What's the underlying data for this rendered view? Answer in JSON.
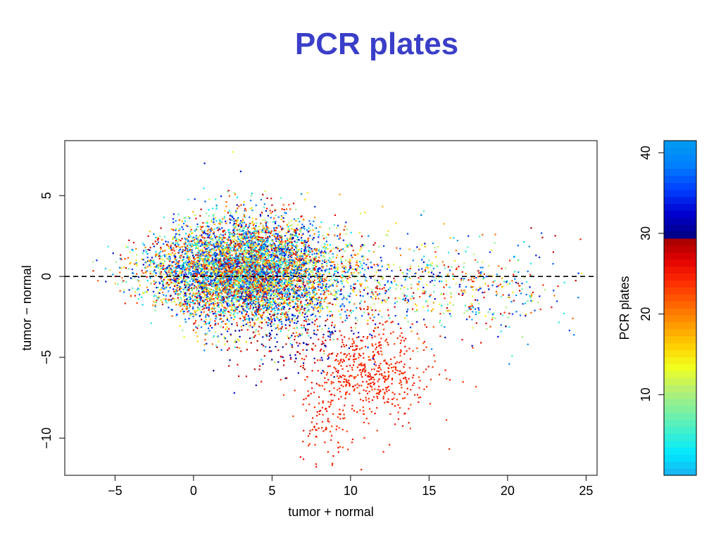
{
  "title": "PCR plates",
  "chart_data": {
    "type": "scatter",
    "title": "PCR plates",
    "xlabel": "tumor + normal",
    "ylabel": "tumor − normal",
    "xlim": [
      -8.2,
      25.7
    ],
    "ylim": [
      -12.3,
      8.4
    ],
    "xticks": [
      -5,
      0,
      5,
      10,
      15,
      20,
      25
    ],
    "xtick_labels": [
      "−5",
      "0",
      "5",
      "10",
      "15",
      "20",
      "25"
    ],
    "yticks": [
      -10,
      -5,
      0,
      5
    ],
    "ytick_labels": [
      "−10",
      "−5",
      "0",
      "5"
    ],
    "reference_line": {
      "y": 0,
      "style": "dashed"
    },
    "grid": false,
    "color_variable": "PCR plates",
    "colorbar": {
      "label": "PCR plates",
      "range": [
        0,
        41.5
      ],
      "ticks": [
        10,
        20,
        30,
        40
      ],
      "tick_labels": [
        "10",
        "20",
        "30",
        "40"
      ],
      "bands": [
        {
          "from": 0,
          "to": 29.5,
          "palette": [
            "#1ab0f0",
            "#00e8ff",
            "#3ef0d0",
            "#7ef0a0",
            "#b8f070",
            "#f0ff20",
            "#ffd000",
            "#ff9800",
            "#ff6000",
            "#ff2a00",
            "#e00000",
            "#a00000"
          ]
        },
        {
          "from": 29.5,
          "to": 41.5,
          "palette": [
            "#000080",
            "#0000d0",
            "#0040ff",
            "#0080ff",
            "#009cf0"
          ]
        }
      ]
    },
    "clusters": [
      {
        "name": "",
        "n": 6500,
        "cx": 3.2,
        "cy": 0.3,
        "sx": 2.9,
        "sy": 1.6,
        "plates": [
          1,
          29
        ],
        "mix": "all"
      },
      {
        "name": "",
        "n": 450,
        "cx": 11.8,
        "cy": -0.5,
        "sx": 3.6,
        "sy": 1.6,
        "plates": [
          1,
          41
        ],
        "mix": "all"
      },
      {
        "name": "",
        "n": 260,
        "cx": 18.5,
        "cy": -1.0,
        "sx": 2.6,
        "sy": 1.4,
        "plates": [
          1,
          41
        ],
        "mix": "all"
      },
      {
        "name": "",
        "n": 520,
        "cx": 11.3,
        "cy": -5.9,
        "sx": 2.0,
        "sy": 1.5,
        "plates": [
          23,
          26
        ],
        "mix": "orange"
      },
      {
        "name": "",
        "n": 90,
        "cx": 8.5,
        "cy": -8.8,
        "sx": 1.1,
        "sy": 1.4,
        "plates": [
          23,
          26
        ],
        "mix": "orange"
      },
      {
        "name": "",
        "n": 220,
        "cx": 6.0,
        "cy": -3.8,
        "sx": 2.6,
        "sy": 1.3,
        "plates": [
          26,
          33
        ],
        "mix": "dark"
      }
    ],
    "notable_points": [
      {
        "x": 2.5,
        "y": 7.7,
        "plate": 14
      },
      {
        "x": 0.7,
        "y": 7.0,
        "plate": 33
      },
      {
        "x": 3.0,
        "y": 6.5,
        "plate": 33
      },
      {
        "x": 21.5,
        "y": 3.0,
        "plate": 29
      },
      {
        "x": 24.5,
        "y": -1.3,
        "plate": 38
      },
      {
        "x": 7.0,
        "y": -11.3,
        "plate": 25
      },
      {
        "x": 7.8,
        "y": -11.6,
        "plate": 25
      },
      {
        "x": 8.9,
        "y": -11.1,
        "plate": 27
      },
      {
        "x": -6.4,
        "y": 0.9,
        "plate": 10
      },
      {
        "x": 22.8,
        "y": -1.9,
        "plate": 26
      },
      {
        "x": 17.5,
        "y": 2.5,
        "plate": 35
      },
      {
        "x": 14.5,
        "y": 3.8,
        "plate": 38
      }
    ]
  }
}
